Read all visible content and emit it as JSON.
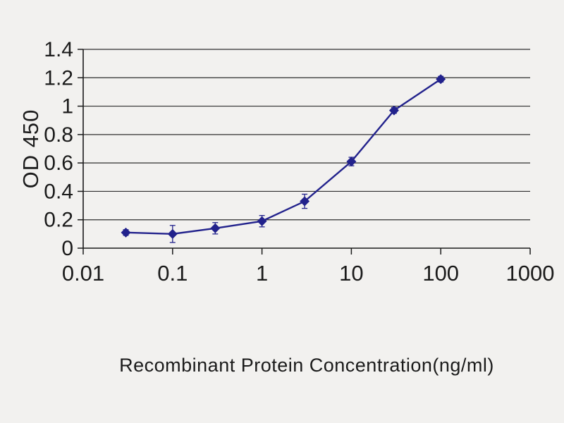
{
  "page": {
    "background_color": "#f2f1ef"
  },
  "chart_data": {
    "type": "line",
    "title": "",
    "xlabel": "Recombinant Protein Concentration(ng/ml)",
    "ylabel": "OD 450",
    "x_scale": "log",
    "xlim": [
      0.01,
      1000
    ],
    "ylim": [
      0,
      1.4
    ],
    "x": [
      0.03,
      0.1,
      0.3,
      1,
      3,
      10,
      30,
      100
    ],
    "series": [
      {
        "name": "OD 450",
        "values": [
          0.11,
          0.1,
          0.14,
          0.19,
          0.33,
          0.61,
          0.97,
          1.19
        ],
        "errors": [
          0.02,
          0.06,
          0.04,
          0.04,
          0.05,
          0.03,
          0.02,
          0.02
        ]
      }
    ],
    "x_ticks": [
      0.01,
      0.1,
      1,
      10,
      100,
      1000
    ],
    "x_tick_labels": [
      "0.01",
      "0.1",
      "1",
      "10",
      "100",
      "1000"
    ],
    "y_ticks": [
      0,
      0.2,
      0.4,
      0.6,
      0.8,
      1,
      1.2,
      1.4
    ],
    "y_tick_labels": [
      "0",
      "0.2",
      "0.4",
      "0.6",
      "0.8",
      "1",
      "1.2",
      "1.4"
    ],
    "grid": "horizontal",
    "legend": "none",
    "marker": "diamond",
    "line_color": "#22228c",
    "grid_color": "#2e2e2e",
    "axis_color": "#1a1a1a"
  }
}
